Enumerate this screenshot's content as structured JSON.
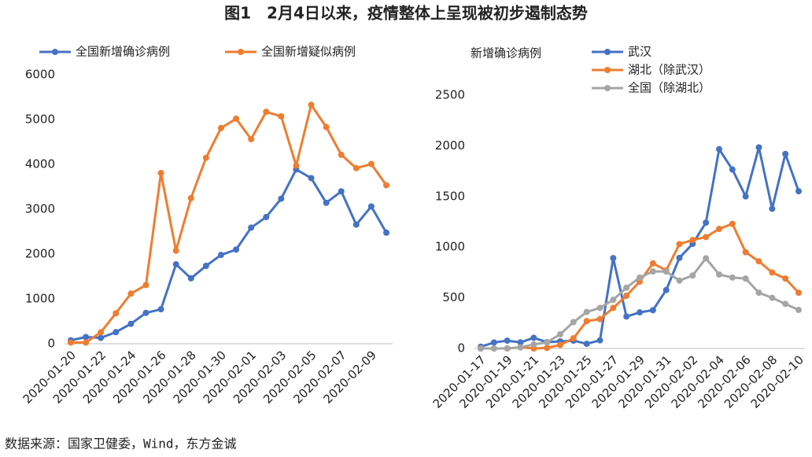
{
  "title": "图1　2月4日以来，疫情整体上呈现被初步遏制态势",
  "source": "数据来源：国家卫健委，Wind，东方金诚",
  "chart_data": [
    {
      "type": "line",
      "legend": "top",
      "categories": [
        "2020-01-20",
        null,
        "2020-01-22",
        null,
        "2020-01-24",
        null,
        "2020-01-26",
        null,
        "2020-01-28",
        null,
        "2020-01-30",
        null,
        "2020-02-01",
        null,
        "2020-02-03",
        null,
        "2020-02-05",
        null,
        "2020-02-07",
        null,
        "2020-02-09",
        null
      ],
      "series": [
        {
          "name": "全国新增确诊病例",
          "color": "#4472c4",
          "values": [
            77,
            149,
            131,
            259,
            444,
            688,
            769,
            1771,
            1459,
            1737,
            1981,
            2099,
            2589,
            2825,
            3235,
            3887,
            3694,
            3143,
            3399,
            2656,
            3062,
            2478
          ]
        },
        {
          "name": "全国新增疑似病例",
          "color": "#ed7d31",
          "values": [
            27,
            26,
            257,
            680,
            1118,
            1309,
            3806,
            2077,
            3248,
            4148,
            4812,
            5019,
            4562,
            5173,
            5072,
            3971,
            5328,
            4833,
            4214,
            3916,
            4008,
            3536
          ]
        }
      ],
      "ylim": [
        0,
        6000
      ],
      "yticks": [
        0,
        1000,
        2000,
        3000,
        4000,
        5000,
        6000
      ]
    },
    {
      "type": "line",
      "legend": "right",
      "ylabel": "新增确诊病例",
      "categories": [
        "2020-01-17",
        null,
        "2020-01-19",
        null,
        "2020-01-21",
        null,
        "2020-01-23",
        null,
        "2020-01-25",
        null,
        "2020-01-27",
        null,
        "2020-01-29",
        null,
        "2020-01-31",
        null,
        "2020-02-02",
        null,
        "2020-02-04",
        null,
        "2020-02-06",
        null,
        "2020-02-08",
        null,
        "2020-02-10"
      ],
      "series": [
        {
          "name": "武汉",
          "color": "#4472c4",
          "values": [
            17,
            59,
            77,
            60,
            105,
            62,
            70,
            77,
            46,
            80,
            892,
            315,
            356,
            378,
            576,
            894,
            1033,
            1242,
            1967,
            1766,
            1501,
            1985,
            1379,
            1920,
            1552
          ]
        },
        {
          "name": "湖北（除武汉）",
          "color": "#ed7d31",
          "values": [
            0,
            0,
            0,
            12,
            0,
            5,
            35,
            100,
            270,
            290,
            400,
            520,
            660,
            840,
            770,
            1030,
            1070,
            1100,
            1180,
            1230,
            950,
            860,
            750,
            690,
            550
          ]
        },
        {
          "name": "全国（除湖北）",
          "color": "#a5a5a5",
          "values": [
            0,
            0,
            0,
            10,
            40,
            60,
            140,
            260,
            360,
            400,
            480,
            600,
            700,
            760,
            760,
            670,
            720,
            890,
            730,
            700,
            690,
            550,
            500,
            440,
            380
          ]
        }
      ],
      "ylim": [
        0,
        2500
      ],
      "yticks": [
        0,
        500,
        1000,
        1500,
        2000,
        2500
      ]
    }
  ]
}
